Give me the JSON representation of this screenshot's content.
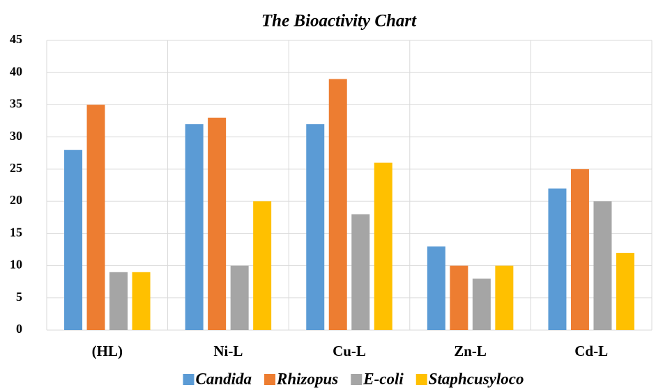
{
  "chart_data": {
    "type": "bar",
    "title": "The Bioactivity Chart",
    "categories": [
      "(HL)",
      "Ni-L",
      "Cu-L",
      "Zn-L",
      "Cd-L"
    ],
    "series": [
      {
        "name": "Candida",
        "color": "#5b9bd5",
        "values": [
          28,
          32,
          32,
          13,
          22
        ]
      },
      {
        "name": "Rhizopus",
        "color": "#ed7d31",
        "values": [
          35,
          33,
          39,
          10,
          25
        ]
      },
      {
        "name": "E-coli",
        "color": "#a5a5a5",
        "values": [
          9,
          10,
          18,
          8,
          20
        ]
      },
      {
        "name": "Staphcusyloco",
        "color": "#ffc000",
        "values": [
          9,
          20,
          26,
          10,
          12
        ]
      }
    ],
    "ylim": [
      0,
      45
    ],
    "yticks": [
      0,
      5,
      10,
      15,
      20,
      25,
      30,
      35,
      40,
      45
    ],
    "grid": true,
    "legend": "bottom"
  }
}
